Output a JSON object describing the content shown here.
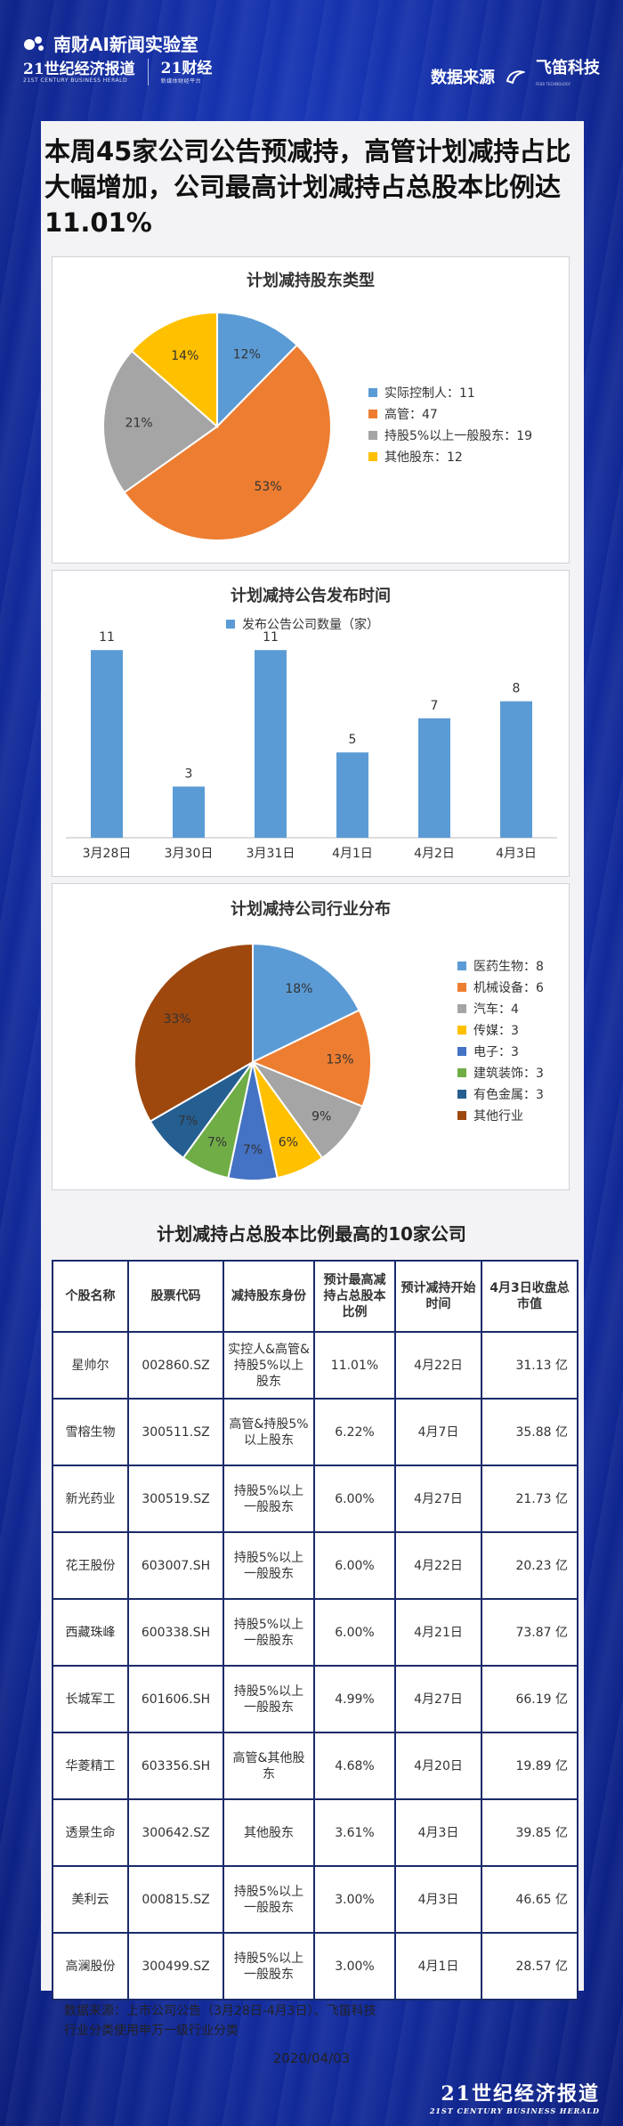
{
  "header": {
    "brand_top": "南财AI新闻实验室",
    "brand_main": "21世纪经济报道",
    "brand_main_sub": "21ST CENTURY BUSINESS HERALD",
    "brand_second": "21财经",
    "brand_second_sub": "新媒体财经平台",
    "source_label": "数据来源",
    "source_name": "飞笛科技",
    "source_name_sub": "FEIDI TECHNOLOGY"
  },
  "headline": "本周45家公司公告预减持，高管计划减持占比大幅增加，公司最高计划减持占总股本比例达11.01%",
  "colors": {
    "blue": "#5b9bd5",
    "orange": "#ed7d31",
    "gray": "#a5a5a5",
    "yellow": "#ffc000",
    "navy": "#264478",
    "green": "#70ad47",
    "darknavy": "#255e91",
    "brown": "#9e480e"
  },
  "chart_data": [
    {
      "type": "pie",
      "title": "计划减持股东类型",
      "slices": [
        {
          "label": "实际控制人：11",
          "value": 11,
          "pct_label": "12%",
          "color": "#5b9bd5"
        },
        {
          "label": "高管：47",
          "value": 47,
          "pct_label": "53%",
          "color": "#ed7d31"
        },
        {
          "label": "持股5%以上一般股东：19",
          "value": 19,
          "pct_label": "21%",
          "color": "#a5a5a5"
        },
        {
          "label": "其他股东：12",
          "value": 12,
          "pct_label": "14%",
          "color": "#ffc000"
        }
      ]
    },
    {
      "type": "bar",
      "title": "计划减持公告发布时间",
      "series_name": "发布公告公司数量（家）",
      "categories": [
        "3月28日",
        "3月30日",
        "3月31日",
        "4月1日",
        "4月2日",
        "4月3日"
      ],
      "values": [
        11,
        3,
        11,
        5,
        7,
        8
      ],
      "ylim": [
        0,
        12
      ],
      "color": "#5b9bd5"
    },
    {
      "type": "pie",
      "title": "计划减持公司行业分布",
      "slices": [
        {
          "label": "医药生物：8",
          "value": 8,
          "pct_label": "18%",
          "color": "#5b9bd5"
        },
        {
          "label": "机械设备：6",
          "value": 6,
          "pct_label": "13%",
          "color": "#ed7d31"
        },
        {
          "label": "汽车：4",
          "value": 4,
          "pct_label": "9%",
          "color": "#a5a5a5"
        },
        {
          "label": "传媒：3",
          "value": 3,
          "pct_label": "6%",
          "color": "#ffc000"
        },
        {
          "label": "电子：3",
          "value": 3,
          "pct_label": "7%",
          "color": "#4472c4"
        },
        {
          "label": "建筑装饰：3",
          "value": 3,
          "pct_label": "7%",
          "color": "#70ad47"
        },
        {
          "label": "有色金属：3",
          "value": 3,
          "pct_label": "7%",
          "color": "#255e91"
        },
        {
          "label": "其他行业",
          "value": 15,
          "pct_label": "33%",
          "color": "#9e480e"
        }
      ]
    },
    {
      "type": "table",
      "title": "计划减持占总股本比例最高的10家公司",
      "columns": [
        "个股名称",
        "股票代码",
        "减持股东身份",
        "预计最高减持占总股本比例",
        "预计减持开始时间",
        "4月3日收盘总市值"
      ],
      "rows": [
        [
          "星帅尔",
          "002860.SZ",
          "实控人&高管&持股5%以上股东",
          "11.01%",
          "4月22日",
          "31.13 亿"
        ],
        [
          "雪榕生物",
          "300511.SZ",
          "高管&持股5%以上股东",
          "6.22%",
          "4月7日",
          "35.88 亿"
        ],
        [
          "新光药业",
          "300519.SZ",
          "持股5%以上一般股东",
          "6.00%",
          "4月27日",
          "21.73 亿"
        ],
        [
          "花王股份",
          "603007.SH",
          "持股5%以上一般股东",
          "6.00%",
          "4月22日",
          "20.23 亿"
        ],
        [
          "西藏珠峰",
          "600338.SH",
          "持股5%以上一般股东",
          "6.00%",
          "4月21日",
          "73.87 亿"
        ],
        [
          "长城军工",
          "601606.SH",
          "持股5%以上一般股东",
          "4.99%",
          "4月27日",
          "66.19 亿"
        ],
        [
          "华菱精工",
          "603356.SH",
          "高管&其他股东",
          "4.68%",
          "4月20日",
          "19.89 亿"
        ],
        [
          "透景生命",
          "300642.SZ",
          "其他股东",
          "3.61%",
          "4月3日",
          "39.85 亿"
        ],
        [
          "美利云",
          "000815.SZ",
          "持股5%以上一般股东",
          "3.00%",
          "4月3日",
          "46.65 亿"
        ],
        [
          "高澜股份",
          "300499.SZ",
          "持股5%以上一般股东",
          "3.00%",
          "4月1日",
          "28.57 亿"
        ]
      ]
    }
  ],
  "footer": {
    "source_line": "数据来源：上市公司公告（3月28日-4月3日）、飞笛科技",
    "note_line": "行业分类使用申万一级行业分类",
    "date": "2020/04/03",
    "brand_main": "21世纪经济报道",
    "brand_sub": "21ST CENTURY BUSINESS HERALD"
  }
}
